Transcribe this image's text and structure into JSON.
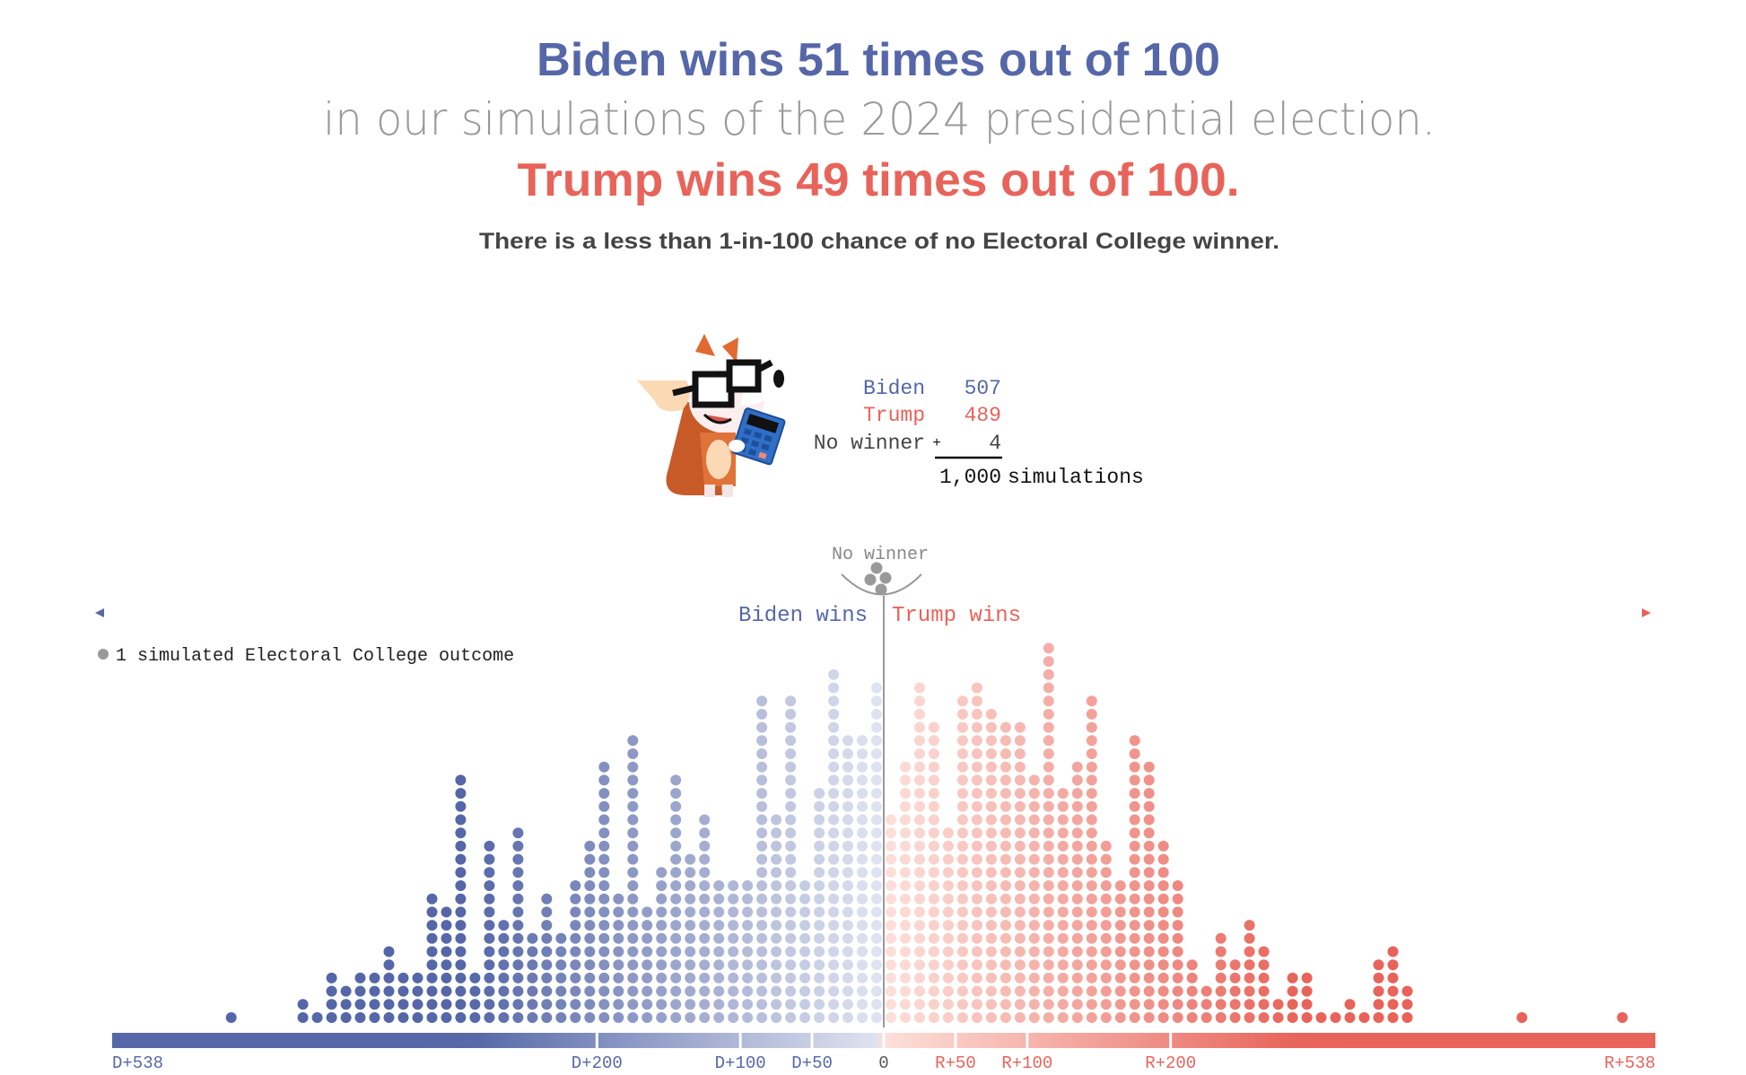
{
  "header": {
    "line1": "Biden wins 51 times out of 100",
    "line2": "in our simulations of the 2024 presidential election.",
    "line3": "Trump wins 49 times out of 100.",
    "subtitle": "There is a less than 1-in-100 chance of no Electoral College winner."
  },
  "mascot": {
    "icon": "fox-with-glasses-and-calculator-icon"
  },
  "tally": {
    "rows": [
      {
        "label": "Biden",
        "value": "507"
      },
      {
        "label": "Trump",
        "value": "489"
      },
      {
        "label": "No winner",
        "value": "4"
      }
    ],
    "plus_sign": "+",
    "total": "1,000",
    "total_label": "simulations"
  },
  "colors": {
    "biden": "#5567a8",
    "biden_light": "#e1e4f1",
    "trump": "#e8635a",
    "trump_light": "#fde0da",
    "no_winner": "#999999",
    "text_gray": "#999999",
    "text_dark": "#444444"
  },
  "chart_data": {
    "type": "bar",
    "title": "",
    "xlabel": "",
    "ylabel": "",
    "xlim": [
      -538,
      538
    ],
    "grid": false,
    "no_winner_label": "No winner",
    "no_winner_count": 4,
    "biden_side_label": "Biden wins",
    "trump_side_label": "Trump wins",
    "legend": {
      "label": "1 simulated Electoral College outcome",
      "placement": "top-left"
    },
    "x_ticks": [
      {
        "value": -538,
        "label": "D+538"
      },
      {
        "value": -200,
        "label": "D+200"
      },
      {
        "value": -100,
        "label": "D+100"
      },
      {
        "value": -50,
        "label": "D+50"
      },
      {
        "value": 0,
        "label": "0"
      },
      {
        "value": 50,
        "label": "R+50"
      },
      {
        "value": 100,
        "label": "R+100"
      },
      {
        "value": 200,
        "label": "R+200"
      },
      {
        "value": 538,
        "label": "R+538"
      }
    ],
    "categories": [
      -455,
      -405,
      -395,
      -385,
      -375,
      -365,
      -355,
      -345,
      -335,
      -325,
      -315,
      -305,
      -295,
      -285,
      -275,
      -265,
      -255,
      -245,
      -235,
      -225,
      -215,
      -205,
      -195,
      -185,
      -175,
      -165,
      -155,
      -145,
      -135,
      -125,
      -115,
      -105,
      -95,
      -85,
      -75,
      -65,
      -55,
      -45,
      -35,
      -25,
      -15,
      -5,
      5,
      15,
      25,
      35,
      45,
      55,
      65,
      75,
      85,
      95,
      105,
      115,
      125,
      135,
      145,
      155,
      165,
      175,
      185,
      195,
      205,
      215,
      225,
      235,
      245,
      255,
      265,
      275,
      285,
      295,
      305,
      315,
      325,
      335,
      345,
      355,
      365,
      445,
      515
    ],
    "values": [
      1,
      2,
      1,
      4,
      3,
      4,
      4,
      6,
      4,
      4,
      10,
      9,
      19,
      4,
      14,
      8,
      15,
      7,
      10,
      7,
      11,
      14,
      20,
      10,
      22,
      9,
      12,
      19,
      13,
      16,
      11,
      11,
      11,
      25,
      16,
      25,
      11,
      18,
      27,
      22,
      22,
      26,
      16,
      20,
      26,
      23,
      15,
      25,
      26,
      24,
      23,
      23,
      19,
      29,
      18,
      20,
      25,
      14,
      11,
      22,
      20,
      14,
      11,
      5,
      3,
      7,
      5,
      8,
      6,
      2,
      4,
      4,
      1,
      1,
      2,
      1,
      5,
      6,
      3,
      1,
      1
    ]
  }
}
